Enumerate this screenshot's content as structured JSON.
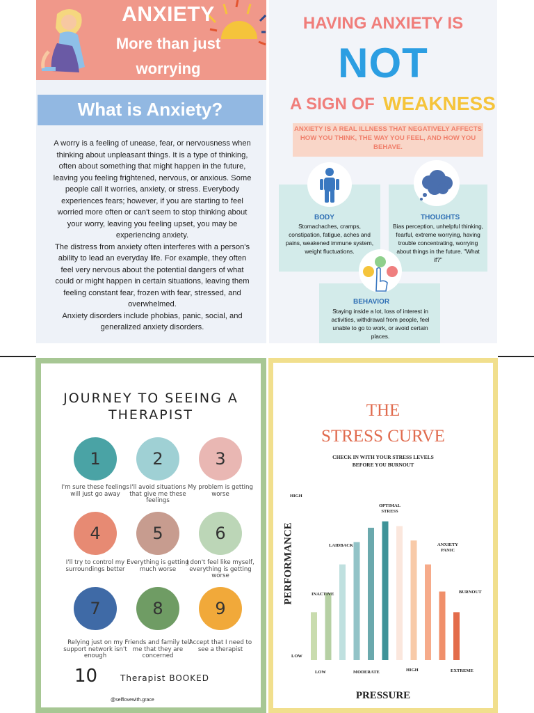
{
  "panel1": {
    "banner_title": "ANXIETY",
    "banner_sub1": "More than just",
    "banner_sub2": "worrying",
    "question": "What is Anxiety?",
    "body": [
      "A worry is a feeling of unease, fear, or nervousness when thinking about unpleasant things. It is a type of thinking, often about something that might happen in the future, leaving you feeling frightened, nervous, or anxious. Some people call it worries, anxiety, or stress. Everybody experiences fears; however, if you are starting to feel worried more often or can't seem to stop thinking about your worry, leaving you feeling upset, you may be experiencing anxiety.",
      "The distress from anxiety often interferes with a person's ability to lead an everyday life. For example, they often feel very nervous about the potential dangers of what could or might happen in certain situations, leaving them feeling constant fear, frozen with fear, stressed, and overwhelmed.",
      "Anxiety disorders include phobias, panic, social, and generalized anxiety disorders."
    ],
    "colors": {
      "banner": "#f0988a",
      "question_box": "#92b8e2"
    }
  },
  "panel2": {
    "title1": "HAVING ANXIETY IS",
    "title_not": "NOT",
    "title_sign": "A SIGN OF",
    "title_weak": "WEAKNESS",
    "illness": "ANXIETY IS A REAL ILLNESS THAT NEGATIVELY AFFECTS HOW YOU THINK, THE WAY YOU FEEL, AND HOW YOU BEHAVE.",
    "body_title": "BODY",
    "body_text": "Stomachaches, cramps, constipation, fatigue, aches and pains, weakened immune system, weight fluctuations.",
    "thoughts_title": "THOUGHTS",
    "thoughts_text": "Bias perception, unhelpful thinking, fearful, extreme worrying, having trouble concentrating, worrying about things in the future. \"What if?\"",
    "behavior_title": "BEHAVIOR",
    "behavior_text": "Staying inside a lot, loss of interest in activities, withdrawal from people, feel unable to go to work, or avoid certain places.",
    "icons": [
      "person-icon",
      "thought-cloud-icon",
      "emotion-faces-icon"
    ]
  },
  "panel3": {
    "title_line1": "JOURNEY TO SEEING A",
    "title_line2": "THERAPIST",
    "steps": [
      {
        "n": "1",
        "text": "I'm sure these feelings will just go away",
        "color": "#4aa3a5"
      },
      {
        "n": "2",
        "text": "I'll avoid situations that give me these feelings",
        "color": "#9fd0d4"
      },
      {
        "n": "3",
        "text": "My problem is getting worse",
        "color": "#e9b7b3"
      },
      {
        "n": "4",
        "text": "I'll try to control my surroundings better",
        "color": "#e78a73"
      },
      {
        "n": "5",
        "text": "Everything is getting much worse",
        "color": "#c79c8f"
      },
      {
        "n": "6",
        "text": "I don't feel like myself, everything is getting worse",
        "color": "#bcd6b7"
      },
      {
        "n": "7",
        "text": "Relying just on my support network isn't enough",
        "color": "#3f6aa6"
      },
      {
        "n": "8",
        "text": "Friends and family tell me that they are concerned",
        "color": "#6f9c64"
      },
      {
        "n": "9",
        "text": "Accept that I need to see a therapist",
        "color": "#f1a93a"
      }
    ],
    "ten": "10",
    "booked": "Therapist BOOKED",
    "handle": "@selflovewith.grace"
  },
  "panel4": {
    "title1": "THE",
    "title2": "STRESS CURVE",
    "sub1": "CHECK IN WITH YOUR STRESS LEVELS",
    "sub2": "BEFORE YOU BURNOUT",
    "ylabel": "PERFORMANCE",
    "xlabel": "PRESSURE",
    "y_high": "HIGH",
    "y_low": "LOW",
    "x_ticks": [
      "LOW",
      "MODERATE",
      "HIGH",
      "EXTREME"
    ],
    "annotations": {
      "inactive": "INACTIVE",
      "laidback": "LAIDBACK",
      "optimal1": "OPTIMAL",
      "optimal2": "STRESS",
      "anxiety1": "ANXIETY",
      "anxiety2": "PANIC",
      "burnout": "BURNOUT"
    }
  },
  "chart_data": {
    "type": "bar",
    "title": "THE STRESS CURVE",
    "subtitle": "CHECK IN WITH YOUR STRESS LEVELS BEFORE YOU BURNOUT",
    "xlabel": "PRESSURE",
    "ylabel": "PERFORMANCE",
    "x_ticks": [
      "LOW",
      "MODERATE",
      "HIGH",
      "EXTREME"
    ],
    "y_ticks": [
      "LOW",
      "HIGH"
    ],
    "values": [
      0.3,
      0.42,
      0.6,
      0.74,
      0.83,
      0.87,
      0.84,
      0.75,
      0.6,
      0.43,
      0.3
    ],
    "colors": [
      "#c9dcae",
      "#b6d0a4",
      "#bfe0df",
      "#92c3c7",
      "#6ba9ad",
      "#3e9398",
      "#fbe7dd",
      "#f8caa8",
      "#f6ab8a",
      "#f08f6a",
      "#e36c4a"
    ],
    "ylim": [
      0,
      1
    ]
  }
}
